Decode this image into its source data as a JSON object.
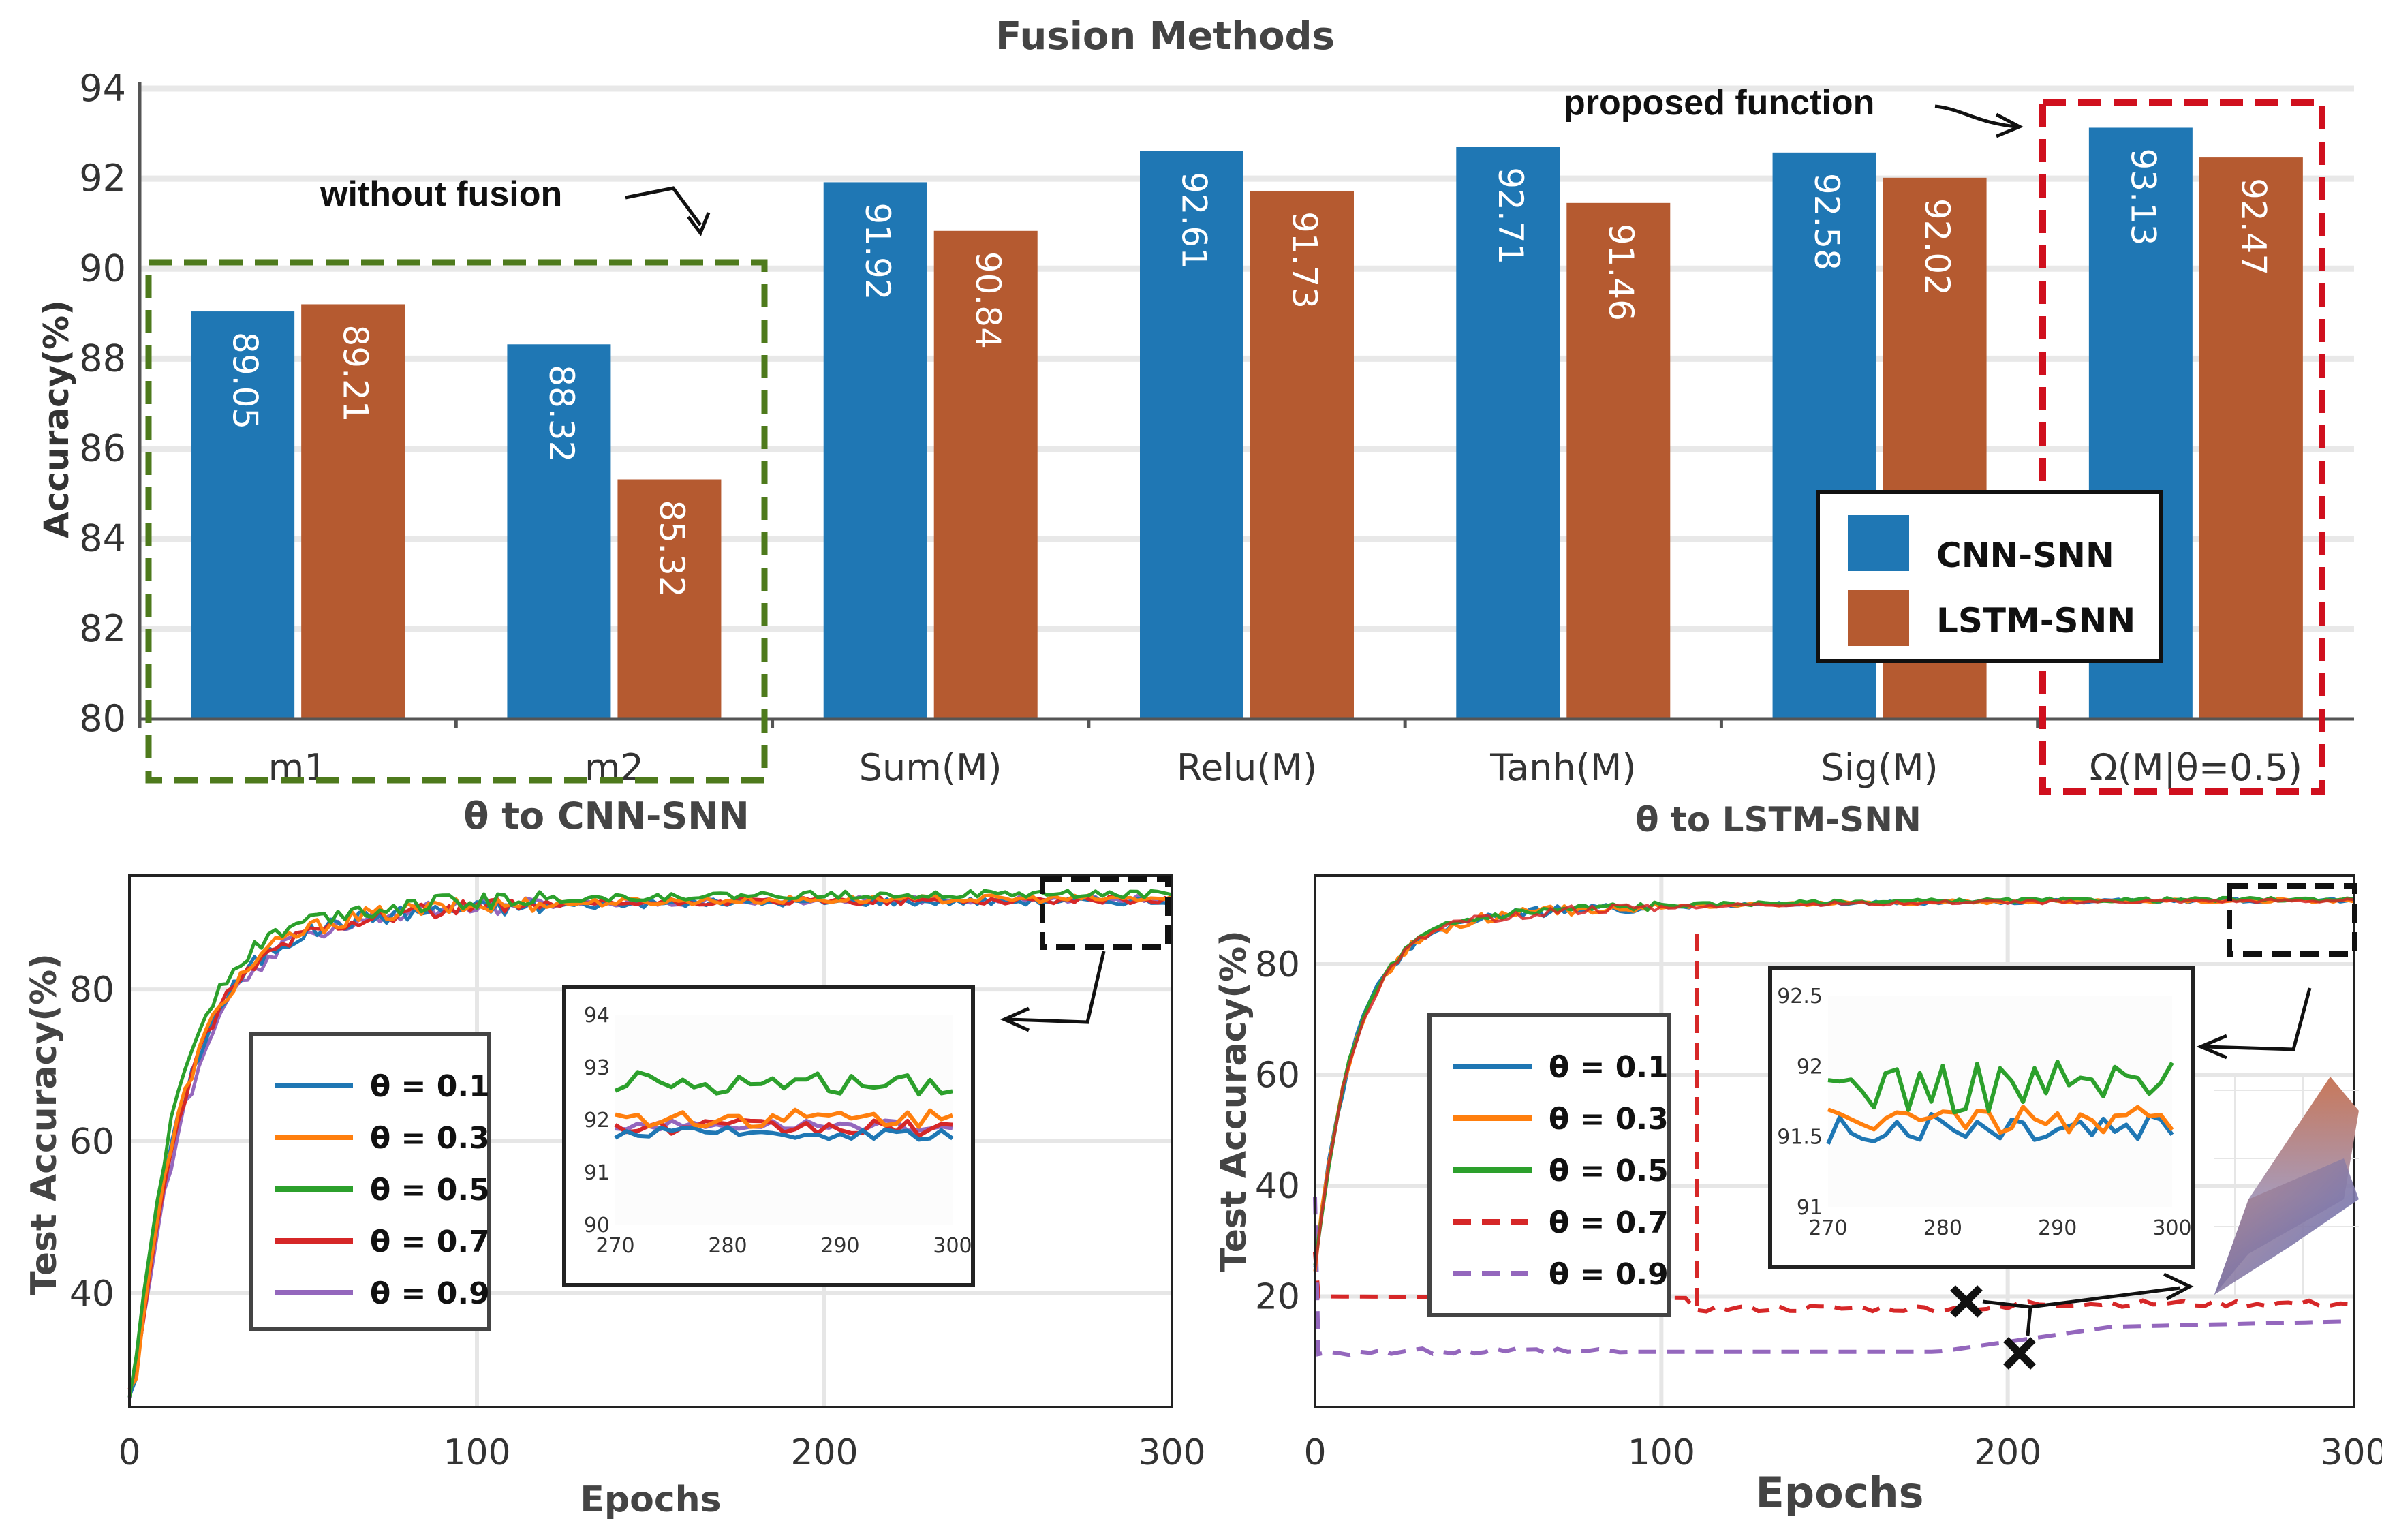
{
  "chart_data": [
    {
      "type": "bar",
      "title": "Fusion Methods",
      "ylabel": "Accuracy(%)",
      "ylim": [
        80,
        94
      ],
      "yticks": [
        80,
        82,
        84,
        86,
        88,
        90,
        92,
        94
      ],
      "categories": [
        "m1",
        "m2",
        "Sum(M)",
        "Relu(M)",
        "Tanh(M)",
        "Sig(M)",
        "Ω(M|θ=0.5)"
      ],
      "series": [
        {
          "name": "CNN-SNN",
          "color": "#1f77b4",
          "values": [
            89.05,
            88.32,
            91.92,
            92.61,
            92.71,
            92.58,
            93.13
          ],
          "labels": [
            "89.05",
            "88.32",
            "91.92",
            "92.61",
            "92.71",
            "92.58",
            "93.13"
          ]
        },
        {
          "name": "LSTM-SNN",
          "color": "#b55a30",
          "values": [
            89.21,
            85.32,
            90.84,
            91.73,
            91.46,
            92.02,
            92.47
          ],
          "labels": [
            "89.21",
            "85.32",
            "90.84",
            "91.73",
            "91.46",
            "92.02",
            "92.47"
          ]
        }
      ],
      "annotations": {
        "without_fusion": "without fusion",
        "proposed": "proposed function"
      },
      "legend_position": "bottom-right"
    },
    {
      "type": "line",
      "subtitle": "θ to CNN-SNN",
      "xlabel": "Epochs",
      "ylabel": "Test Accuracy(%)",
      "xlim": [
        0,
        300
      ],
      "ylim": [
        25,
        95
      ],
      "xticks": [
        0,
        100,
        200,
        300
      ],
      "xtick_labels": [
        "0",
        "100",
        "200",
        "300"
      ],
      "yticks": [
        40,
        60,
        80
      ],
      "series": [
        {
          "name": "θ = 0.1",
          "color": "#1f77b4",
          "final": 91.8,
          "dashed": false
        },
        {
          "name": "θ = 0.3",
          "color": "#ff7f0e",
          "final": 92.1,
          "dashed": false
        },
        {
          "name": "θ = 0.5",
          "color": "#2ca02c",
          "final": 92.7,
          "dashed": false
        },
        {
          "name": "θ = 0.7",
          "color": "#d62728",
          "final": 91.9,
          "dashed": false
        },
        {
          "name": "θ = 0.9",
          "color": "#9467bd",
          "final": 91.9,
          "dashed": false
        }
      ],
      "inset": {
        "xlim": [
          270,
          300
        ],
        "ylim": [
          90,
          94
        ],
        "xticks": [
          "270",
          "280",
          "290",
          "300"
        ],
        "yticks": [
          "90",
          "91",
          "92",
          "93",
          "94"
        ]
      },
      "legend_position": "center-left"
    },
    {
      "type": "line",
      "subtitle": "θ to LSTM-SNN",
      "xlabel": "Epochs",
      "ylabel": "Test Accuracy(%)",
      "xlim": [
        0,
        300
      ],
      "ylim": [
        0,
        96
      ],
      "xticks": [
        0,
        100,
        200,
        300
      ],
      "xtick_labels": [
        "0",
        "100",
        "200",
        "300"
      ],
      "yticks": [
        20,
        40,
        60,
        80
      ],
      "series": [
        {
          "name": "θ = 0.1",
          "color": "#1f77b4",
          "final": 91.7,
          "dashed": false
        },
        {
          "name": "θ = 0.3",
          "color": "#ff7f0e",
          "final": 91.7,
          "dashed": false
        },
        {
          "name": "θ = 0.5",
          "color": "#2ca02c",
          "final": 91.9,
          "dashed": false
        },
        {
          "name": "θ = 0.7",
          "color": "#d62728",
          "final": 18.5,
          "dashed": true
        },
        {
          "name": "θ = 0.9",
          "color": "#9467bd",
          "final": 15.5,
          "dashed": true
        }
      ],
      "inset": {
        "xlim": [
          270,
          300
        ],
        "ylim": [
          91,
          92.5
        ],
        "xticks": [
          "270",
          "280",
          "290",
          "300"
        ],
        "yticks": [
          "91",
          "91.5",
          "92",
          "92.5"
        ]
      },
      "legend_position": "center-left"
    }
  ]
}
